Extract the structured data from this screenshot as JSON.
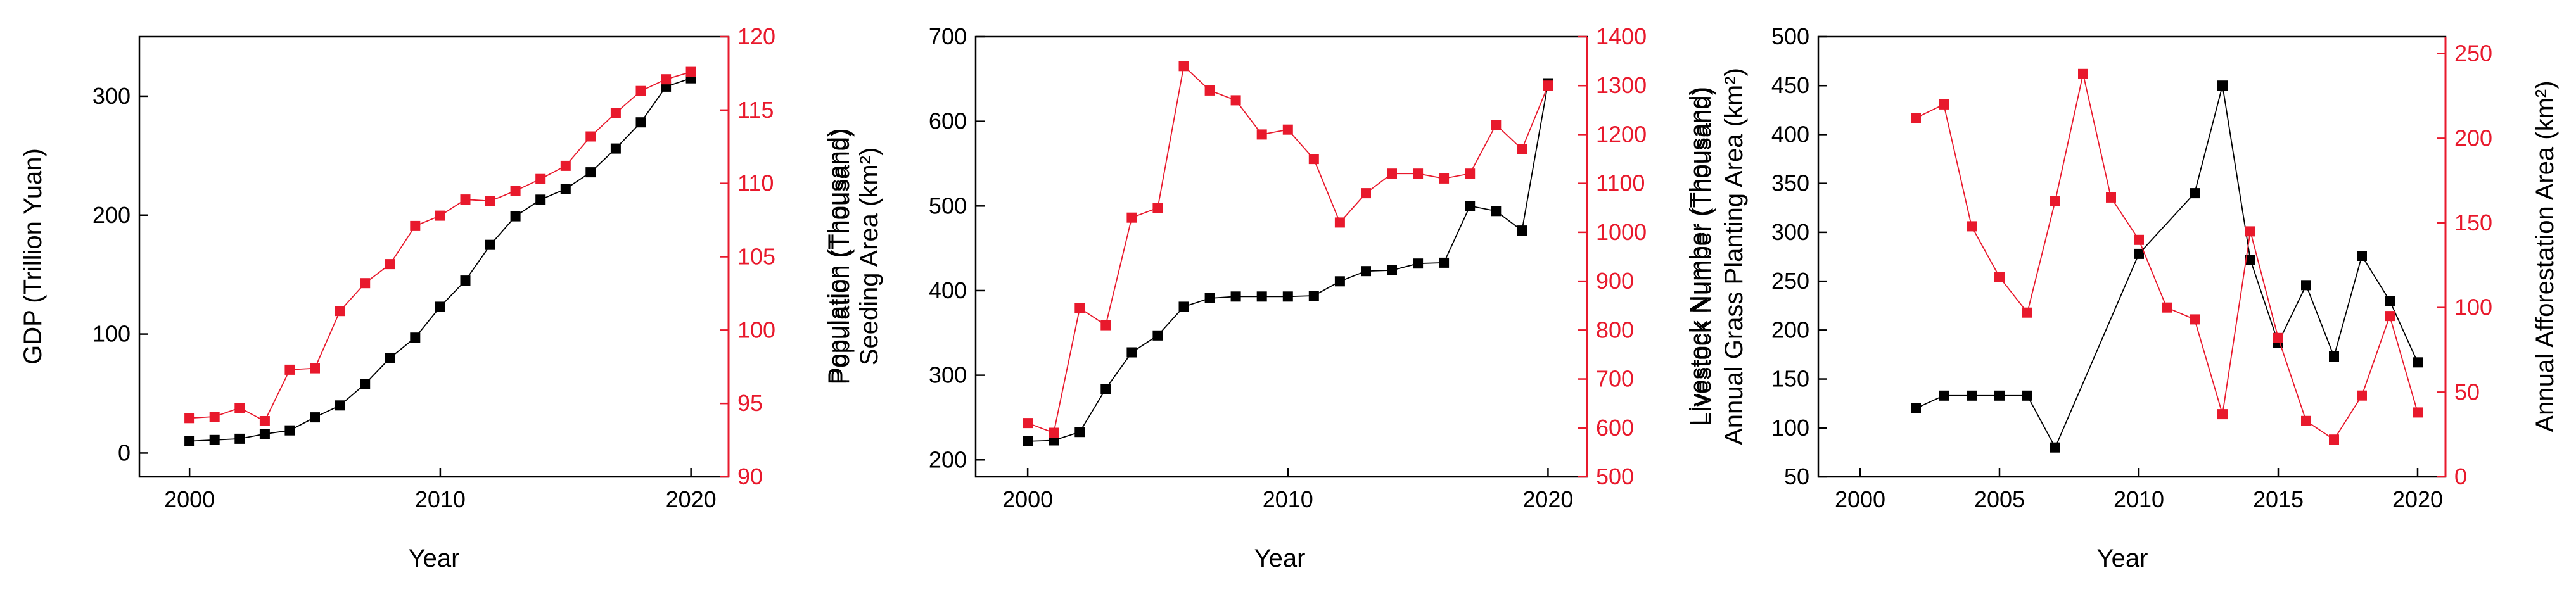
{
  "colors": {
    "left_series": "#000000",
    "right_series": "#e8192c",
    "axis": "#000000"
  },
  "chart_data": [
    {
      "type": "line",
      "xlabel": "Year",
      "ylabel_left": "GDP (Trillion Yuan)",
      "ylabel_right_lines": [
        "Population (Thousand)"
      ],
      "xlim": [
        1998,
        2021.5
      ],
      "xticks": [
        2000,
        2010,
        2020
      ],
      "ylim_left": [
        -20,
        350
      ],
      "yticks_left": [
        0,
        100,
        200,
        300
      ],
      "ylim_right": [
        90,
        120
      ],
      "yticks_right": [
        90,
        95,
        100,
        105,
        110,
        115,
        120
      ],
      "series": [
        {
          "axis": "left",
          "color": "#000000",
          "x": [
            2000,
            2001,
            2002,
            2003,
            2004,
            2005,
            2006,
            2007,
            2008,
            2009,
            2010,
            2011,
            2012,
            2013,
            2014,
            2015,
            2016,
            2017,
            2018,
            2019,
            2020
          ],
          "values": [
            10,
            11,
            12,
            16,
            19,
            30,
            40,
            58,
            80,
            97,
            123,
            145,
            175,
            199,
            213,
            222,
            236,
            256,
            278,
            308,
            315
          ]
        },
        {
          "axis": "right",
          "color": "#e8192c",
          "x": [
            2000,
            2001,
            2002,
            2003,
            2004,
            2005,
            2006,
            2007,
            2008,
            2009,
            2010,
            2011,
            2012,
            2013,
            2014,
            2015,
            2016,
            2017,
            2018,
            2019,
            2020
          ],
          "values": [
            94.0,
            94.1,
            94.7,
            93.8,
            97.3,
            97.4,
            101.3,
            103.2,
            104.5,
            107.1,
            107.8,
            108.9,
            108.8,
            109.5,
            110.3,
            111.2,
            113.2,
            114.8,
            116.3,
            117.1,
            117.6
          ]
        }
      ]
    },
    {
      "type": "line",
      "xlabel": "Year",
      "ylabel_left_lines": [
        "Population (Thousand)",
        "Seeding Area (km²)"
      ],
      "ylabel_right_lines": [
        "Livestock Number (Thousand)"
      ],
      "xlim": [
        1998,
        2021.5
      ],
      "xticks": [
        2000,
        2010,
        2020
      ],
      "ylim_left": [
        180,
        700
      ],
      "yticks_left": [
        200,
        300,
        400,
        500,
        600,
        700
      ],
      "ylim_right": [
        500,
        1400
      ],
      "yticks_right": [
        500,
        600,
        700,
        800,
        900,
        1000,
        1100,
        1200,
        1300,
        1400
      ],
      "series": [
        {
          "axis": "left",
          "color": "#000000",
          "x": [
            2000,
            2001,
            2002,
            2003,
            2004,
            2005,
            2006,
            2007,
            2008,
            2009,
            2010,
            2011,
            2012,
            2013,
            2014,
            2015,
            2016,
            2017,
            2018,
            2019,
            2020
          ],
          "values": [
            222,
            223,
            233,
            284,
            327,
            347,
            381,
            391,
            393,
            393,
            393,
            394,
            411,
            423,
            424,
            432,
            433,
            500,
            494,
            471,
            645
          ]
        },
        {
          "axis": "right",
          "color": "#e8192c",
          "x": [
            2000,
            2001,
            2002,
            2003,
            2004,
            2005,
            2006,
            2007,
            2008,
            2009,
            2010,
            2011,
            2012,
            2013,
            2014,
            2015,
            2016,
            2017,
            2018,
            2019,
            2020
          ],
          "values": [
            610,
            590,
            845,
            810,
            1030,
            1050,
            1340,
            1290,
            1270,
            1200,
            1210,
            1150,
            1020,
            1080,
            1120,
            1120,
            1110,
            1120,
            1220,
            1170,
            1300
          ]
        }
      ]
    },
    {
      "type": "line",
      "xlabel": "Year",
      "ylabel_left_lines": [
        "Livestock Number (Thousand)",
        "Annual Grass Planting Area (km²)"
      ],
      "ylabel_right": "Annual Afforestation Area (km²)",
      "xlim": [
        1998.5,
        2021
      ],
      "xticks": [
        2000,
        2005,
        2010,
        2015,
        2020
      ],
      "ylim_left": [
        50,
        500
      ],
      "yticks_left": [
        50,
        100,
        150,
        200,
        250,
        300,
        350,
        400,
        450,
        500
      ],
      "ylim_right": [
        0,
        260
      ],
      "yticks_right": [
        0,
        50,
        100,
        150,
        200,
        250
      ],
      "series": [
        {
          "axis": "left",
          "color": "#000000",
          "x": [
            2002,
            2003,
            2004,
            2005,
            2006,
            2007,
            2010,
            2012,
            2013,
            2014,
            2015,
            2016,
            2017,
            2018,
            2019,
            2020
          ],
          "values": [
            120,
            133,
            133,
            133,
            133,
            80,
            278,
            340,
            450,
            272,
            187,
            246,
            173,
            276,
            230,
            167
          ]
        },
        {
          "axis": "right",
          "color": "#e8192c",
          "x": [
            2002,
            2003,
            2004,
            2005,
            2006,
            2007,
            2008,
            2009,
            2010,
            2011,
            2012,
            2013,
            2014,
            2015,
            2016,
            2017,
            2018,
            2019,
            2020
          ],
          "values": [
            212,
            220,
            148,
            118,
            97,
            163,
            238,
            165,
            140,
            100,
            93,
            37,
            145,
            82,
            33,
            22,
            48,
            95,
            38
          ]
        }
      ]
    }
  ]
}
